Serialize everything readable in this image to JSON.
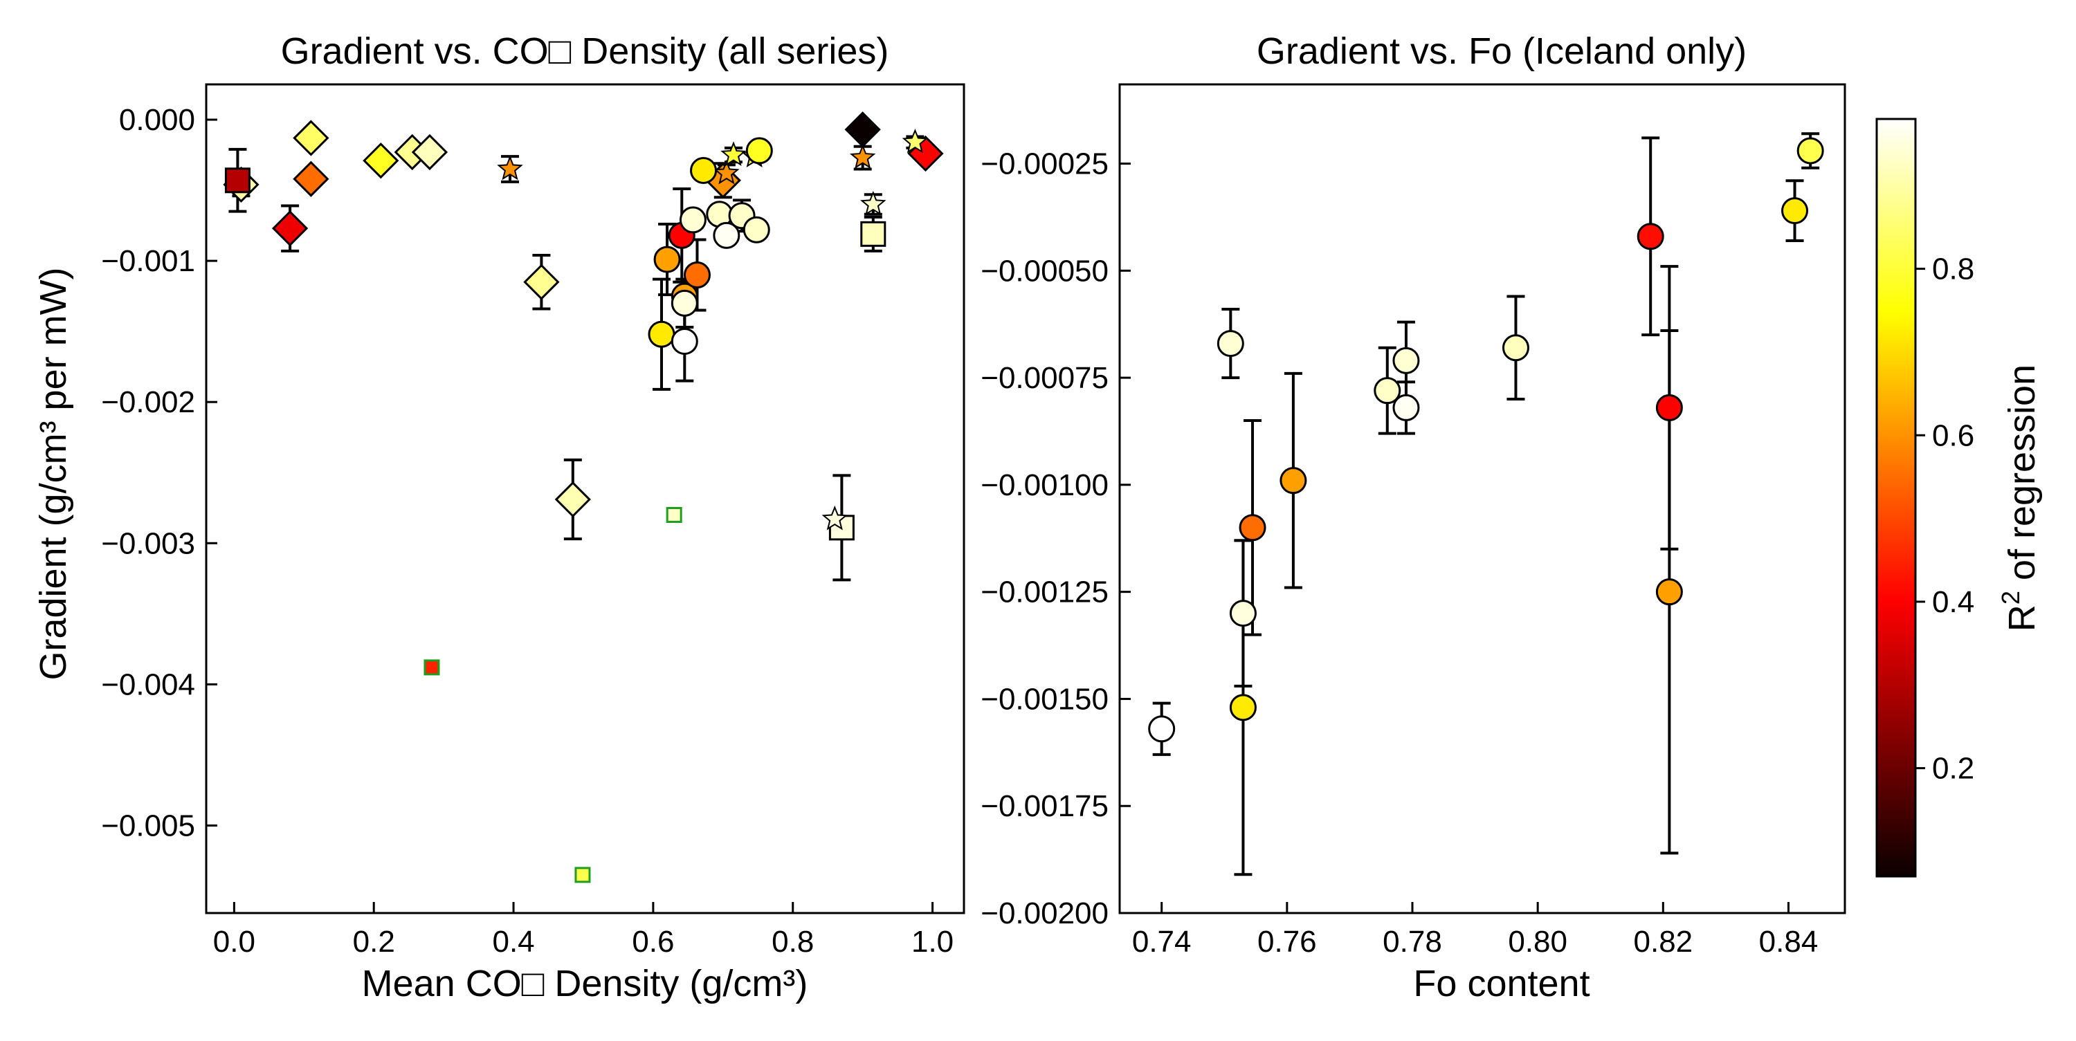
{
  "figure": {
    "colorbar": {
      "label": "R² of regression",
      "label_main": "R",
      "label_sup": "2",
      "label_rest": " of regression",
      "range": [
        0.07,
        0.98
      ],
      "ticks": [
        0.2,
        0.4,
        0.6,
        0.8
      ],
      "tick_labels": [
        "0.2",
        "0.4",
        "0.6",
        "0.8"
      ],
      "colormap": "hot"
    }
  },
  "chart_data": [
    {
      "type": "scatter",
      "title": "Gradient vs. CO□ Density (all series)",
      "xlabel": "Mean CO□ Density (g/cm³)",
      "ylabel": "Gradient (g/cm³ per mW)",
      "xlim": [
        -0.04,
        1.045
      ],
      "ylim": [
        -0.00562,
        0.00025
      ],
      "xticks": [
        0.0,
        0.2,
        0.4,
        0.6,
        0.8,
        1.0
      ],
      "xtick_labels": [
        "0.0",
        "0.2",
        "0.4",
        "0.6",
        "0.8",
        "1.0"
      ],
      "yticks": [
        0.0,
        -0.001,
        -0.002,
        -0.003,
        -0.004,
        -0.005
      ],
      "ytick_labels": [
        "0.000",
        "−0.001",
        "−0.002",
        "−0.003",
        "−0.004",
        "−0.005"
      ],
      "grid": false,
      "series": [
        {
          "marker": "diamond",
          "points": [
            {
              "x": 0.01,
              "y": -0.00046,
              "r2": 0.9,
              "err": 8e-05
            },
            {
              "x": 0.08,
              "y": -0.00077,
              "r2": 0.38,
              "err": 0.00016
            },
            {
              "x": 0.11,
              "y": -0.00013,
              "r2": 0.84
            },
            {
              "x": 0.11,
              "y": -0.00042,
              "r2": 0.55
            },
            {
              "x": 0.21,
              "y": -0.00029,
              "r2": 0.78
            },
            {
              "x": 0.255,
              "y": -0.00023,
              "r2": 0.88
            },
            {
              "x": 0.28,
              "y": -0.00023,
              "r2": 0.92
            },
            {
              "x": 0.44,
              "y": -0.00115,
              "r2": 0.88,
              "err": 0.00019
            },
            {
              "x": 0.485,
              "y": -0.00269,
              "r2": 0.91,
              "err": 0.00028
            },
            {
              "x": 0.7,
              "y": -0.00043,
              "r2": 0.6,
              "err": 0.00012
            },
            {
              "x": 0.9,
              "y": -7e-05,
              "r2": 0.07
            },
            {
              "x": 0.99,
              "y": -0.00024,
              "r2": 0.4
            }
          ]
        },
        {
          "marker": "square",
          "points": [
            {
              "x": 0.005,
              "y": -0.00043,
              "r2": 0.3,
              "err": 0.00022
            },
            {
              "x": 0.915,
              "y": -0.00081,
              "r2": 0.92,
              "err": 0.00012
            },
            {
              "x": 0.87,
              "y": -0.00289,
              "r2": 0.95,
              "err": 0.00037
            }
          ]
        },
        {
          "marker": "star",
          "points": [
            {
              "x": 0.395,
              "y": -0.00035,
              "r2": 0.6,
              "err": 9e-05
            },
            {
              "x": 0.705,
              "y": -0.00038,
              "r2": 0.6,
              "err": 6e-05
            },
            {
              "x": 0.715,
              "y": -0.00025,
              "r2": 0.8,
              "err": 5e-05
            },
            {
              "x": 0.745,
              "y": -0.00026,
              "r2": 0.8
            },
            {
              "x": 0.9,
              "y": -0.00027,
              "r2": 0.6,
              "err": 8e-05
            },
            {
              "x": 0.915,
              "y": -0.0006,
              "r2": 0.93,
              "err": 7e-05
            },
            {
              "x": 0.975,
              "y": -0.00016,
              "r2": 0.85,
              "err": 4e-05
            },
            {
              "x": 0.86,
              "y": -0.00283,
              "r2": 0.95
            }
          ]
        },
        {
          "marker": "circle",
          "points": [
            {
              "x": 0.612,
              "y": -0.00152,
              "r2": 0.72,
              "err": 0.00039
            },
            {
              "x": 0.62,
              "y": -0.00099,
              "r2": 0.62,
              "err": 0.00025
            },
            {
              "x": 0.641,
              "y": -0.00082,
              "r2": 0.4,
              "err": 0.00033
            },
            {
              "x": 0.645,
              "y": -0.00125,
              "r2": 0.62,
              "err": 6e-05
            },
            {
              "x": 0.645,
              "y": -0.0013,
              "r2": 0.95,
              "err": 0.00017
            },
            {
              "x": 0.645,
              "y": -0.00157,
              "r2": 1.0,
              "err": 0.00028
            },
            {
              "x": 0.663,
              "y": -0.0011,
              "r2": 0.55,
              "err": 0.00025
            },
            {
              "x": 0.657,
              "y": -0.00071,
              "r2": 0.94
            },
            {
              "x": 0.672,
              "y": -0.00036,
              "r2": 0.72
            },
            {
              "x": 0.695,
              "y": -0.00067,
              "r2": 0.93
            },
            {
              "x": 0.705,
              "y": -0.00082,
              "r2": 0.97
            },
            {
              "x": 0.727,
              "y": -0.00068,
              "r2": 0.93,
              "err": 0.00011
            },
            {
              "x": 0.748,
              "y": -0.00078,
              "r2": 0.93
            },
            {
              "x": 0.752,
              "y": -0.00022,
              "r2": 0.78
            }
          ]
        },
        {
          "marker": "small-square-green-edge",
          "points": [
            {
              "x": 0.283,
              "y": -0.00388,
              "r2": 0.45
            },
            {
              "x": 0.499,
              "y": -0.00535,
              "r2": 0.82
            },
            {
              "x": 0.63,
              "y": -0.0028,
              "r2": 0.93
            }
          ]
        }
      ]
    },
    {
      "type": "scatter",
      "title": "Gradient vs. Fo (Iceland only)",
      "xlabel": "Fo content",
      "ylabel": "",
      "xlim": [
        0.7333,
        0.849
      ],
      "ylim": [
        -0.002,
        -6.5e-05
      ],
      "xticks": [
        0.74,
        0.76,
        0.78,
        0.8,
        0.82,
        0.84
      ],
      "xtick_labels": [
        "0.74",
        "0.76",
        "0.78",
        "0.80",
        "0.82",
        "0.84"
      ],
      "yticks": [
        -0.00025,
        -0.0005,
        -0.00075,
        -0.001,
        -0.00125,
        -0.0015,
        -0.00175,
        -0.002
      ],
      "ytick_labels": [
        "−0.00025",
        "−0.00050",
        "−0.00075",
        "−0.00100",
        "−0.00125",
        "−0.00150",
        "−0.00175",
        "−0.00200"
      ],
      "grid": false,
      "series": [
        {
          "marker": "circle",
          "points": [
            {
              "x": 0.74,
              "y": -0.00157,
              "r2": 1.0,
              "err": 6e-05
            },
            {
              "x": 0.751,
              "y": -0.00067,
              "r2": 0.94,
              "err": 8e-05
            },
            {
              "x": 0.753,
              "y": -0.0013,
              "r2": 0.95,
              "err": 0.00017
            },
            {
              "x": 0.753,
              "y": -0.00152,
              "r2": 0.72,
              "err": 0.00039
            },
            {
              "x": 0.7545,
              "y": -0.0011,
              "r2": 0.55,
              "err": 0.00025
            },
            {
              "x": 0.761,
              "y": -0.00099,
              "r2": 0.62,
              "err": 0.00025
            },
            {
              "x": 0.776,
              "y": -0.00078,
              "r2": 0.93,
              "err": 0.0001
            },
            {
              "x": 0.779,
              "y": -0.00071,
              "r2": 0.94,
              "err": 9e-05
            },
            {
              "x": 0.779,
              "y": -0.00082,
              "r2": 0.97,
              "err": 6e-05
            },
            {
              "x": 0.7965,
              "y": -0.00068,
              "r2": 0.92,
              "err": 0.00012
            },
            {
              "x": 0.818,
              "y": -0.00042,
              "r2": 0.42,
              "err": 0.00023
            },
            {
              "x": 0.821,
              "y": -0.00082,
              "r2": 0.4,
              "err": 0.00033
            },
            {
              "x": 0.821,
              "y": -0.00125,
              "r2": 0.62,
              "err": 0.00061
            },
            {
              "x": 0.841,
              "y": -0.00036,
              "r2": 0.72,
              "err": 7e-05
            },
            {
              "x": 0.8435,
              "y": -0.00022,
              "r2": 0.82,
              "err": 4e-05
            }
          ]
        }
      ]
    }
  ]
}
